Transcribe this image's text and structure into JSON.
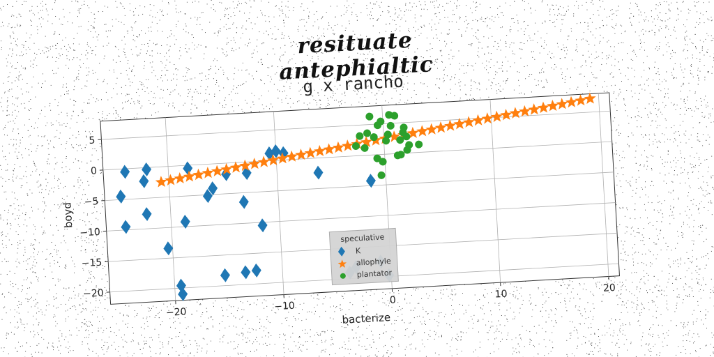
{
  "header": {
    "title": "resituate antephialtic"
  },
  "chart_data": {
    "type": "scatter",
    "title": "g x rancho",
    "xlabel": "bacterize",
    "ylabel": "boyd",
    "xlim": [
      -26,
      21
    ],
    "ylim": [
      -22,
      8
    ],
    "x_ticks": [
      -20,
      -10,
      0,
      10,
      20
    ],
    "y_ticks": [
      -20,
      -15,
      -10,
      -5,
      0,
      5
    ],
    "x_tick_labels": [
      "−20",
      "−10",
      "0",
      "10",
      "20"
    ],
    "y_tick_labels": [
      "−20",
      "−15",
      "−10",
      "−5",
      "0",
      "5"
    ],
    "grid": true,
    "legend": {
      "title": "speculative",
      "position": "bottom-center"
    },
    "series": [
      {
        "name": "K",
        "marker": "diamond",
        "color": "#1f77b4",
        "points": [
          [
            -24.5,
            -4.5
          ],
          [
            -24.2,
            -9.5
          ],
          [
            -24,
            -0.5
          ],
          [
            -22.3,
            -2.2
          ],
          [
            -22.2,
            -7.6
          ],
          [
            -22,
            -0.3
          ],
          [
            -20.4,
            -13.4
          ],
          [
            -19.4,
            -19.6
          ],
          [
            -19.3,
            -21
          ],
          [
            -18.7,
            -9.2
          ],
          [
            -18.2,
            -0.5
          ],
          [
            -16.5,
            -5.2
          ],
          [
            -16,
            -4
          ],
          [
            -15.3,
            -18.3
          ],
          [
            -14.7,
            -1.8
          ],
          [
            -13.4,
            -18
          ],
          [
            -13.2,
            -6.5
          ],
          [
            -12.8,
            -1.8
          ],
          [
            -12.4,
            -17.8
          ],
          [
            -11.6,
            -10.5
          ],
          [
            -10.6,
            1.2
          ],
          [
            -10,
            1.5
          ],
          [
            -9.3,
            1.1
          ],
          [
            -6.2,
            -2.4
          ],
          [
            -3.8,
            -19
          ],
          [
            -3.2,
            -18.2
          ],
          [
            -1.4,
            -4.2
          ],
          [
            -0.9,
            -17.5
          ],
          [
            -0.2,
            -19.8
          ]
        ]
      },
      {
        "name": "allophyle",
        "marker": "star",
        "color": "#ff7f0e",
        "line": {
          "x0": -20.7,
          "y0": -2.5,
          "x1": 19.2,
          "y1": 7.2,
          "count": 47
        }
      },
      {
        "name": "plantator",
        "marker": "circle",
        "color": "#2ca02c",
        "points": [
          [
            -1.2,
            6.3
          ],
          [
            -1.5,
            3.6
          ],
          [
            -2.2,
            3.2
          ],
          [
            -2.6,
            1.6
          ],
          [
            -1.8,
            1.2
          ],
          [
            -0.9,
            2.9
          ],
          [
            -0.5,
            4.8
          ],
          [
            -0.2,
            5.4
          ],
          [
            0.6,
            6.4
          ],
          [
            1.1,
            6.2
          ],
          [
            0.7,
            4.6
          ],
          [
            1.9,
            4.2
          ],
          [
            2.1,
            2.7
          ],
          [
            1.5,
            2.2
          ],
          [
            2.3,
            1.3
          ],
          [
            2.1,
            0.5
          ],
          [
            1.5,
            -0.2
          ],
          [
            3.2,
            1.3
          ],
          [
            0.4,
            3.2
          ],
          [
            -0.7,
            -0.6
          ],
          [
            -0.2,
            -1.2
          ],
          [
            -0.4,
            -3.4
          ],
          [
            1.2,
            -0.3
          ],
          [
            0.2,
            2.2
          ],
          [
            1.8,
            3.4
          ]
        ]
      }
    ]
  }
}
